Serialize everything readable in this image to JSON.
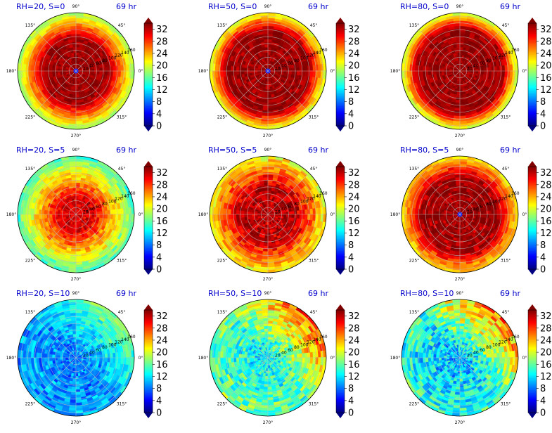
{
  "figure": {
    "colorbar": {
      "ticks": [
        "0",
        "4",
        "8",
        "12",
        "16",
        "20",
        "24",
        "28",
        "32"
      ],
      "vmin": 0,
      "vmax": 34,
      "colormap": "jet",
      "extend": "both"
    },
    "angle_labels": [
      "90°",
      "45°",
      "0°",
      "315°",
      "270°",
      "225°",
      "180°",
      "135°"
    ],
    "radial_labels": [
      "20",
      "40",
      "60",
      "80",
      "100",
      "120",
      "140",
      "160"
    ],
    "radial_max": 170,
    "radial_label_angle_deg": 22.5
  },
  "chart_data": [
    {
      "type": "heatmap",
      "projection": "polar",
      "title_left": "RH=20, S=0",
      "title_right": "69 hr",
      "field": {
        "eye_radius": 6,
        "peak_value": 33,
        "inner_ring_radius": 95,
        "outer_ring_radius": 170,
        "outer_value": 18,
        "asym_amp": 0.04
      }
    },
    {
      "type": "heatmap",
      "projection": "polar",
      "title_left": "RH=50, S=0",
      "title_right": "69 hr",
      "field": {
        "eye_radius": 4,
        "peak_value": 33,
        "inner_ring_radius": 120,
        "outer_ring_radius": 170,
        "outer_value": 20,
        "asym_amp": 0.08
      }
    },
    {
      "type": "heatmap",
      "projection": "polar",
      "title_left": "RH=80, S=0",
      "title_right": "69 hr",
      "field": {
        "eye_radius": 3,
        "peak_value": 33,
        "inner_ring_radius": 125,
        "outer_ring_radius": 170,
        "outer_value": 19,
        "asym_amp": 0.03
      }
    },
    {
      "type": "heatmap",
      "projection": "polar",
      "title_left": "RH=20, S=5",
      "title_right": "69 hr",
      "field": {
        "eye_radius": 3,
        "peak_value": 31,
        "inner_ring_radius": 50,
        "outer_ring_radius": 170,
        "outer_value": 15,
        "asym_amp": 0.25
      }
    },
    {
      "type": "heatmap",
      "projection": "polar",
      "title_left": "RH=50, S=5",
      "title_right": "69 hr",
      "field": {
        "eye_radius": 3,
        "peak_value": 32,
        "inner_ring_radius": 80,
        "outer_ring_radius": 170,
        "outer_value": 21,
        "asym_amp": 0.3
      }
    },
    {
      "type": "heatmap",
      "projection": "polar",
      "title_left": "RH=80, S=5",
      "title_right": "69 hr",
      "field": {
        "eye_radius": 4,
        "peak_value": 33,
        "inner_ring_radius": 110,
        "outer_ring_radius": 170,
        "outer_value": 22,
        "asym_amp": 0.2
      }
    },
    {
      "type": "heatmap",
      "projection": "polar",
      "title_left": "RH=20, S=10",
      "title_right": "69 hr",
      "field": {
        "eye_radius": 0,
        "peak_value": 8,
        "inner_ring_radius": 0,
        "outer_ring_radius": 170,
        "outer_value": 10,
        "asym_amp": 0.35
      }
    },
    {
      "type": "heatmap",
      "projection": "polar",
      "title_left": "RH=50, S=10",
      "title_right": "69 hr",
      "field": {
        "eye_radius": 0,
        "peak_value": 12,
        "inner_ring_radius": 0,
        "outer_ring_radius": 170,
        "outer_value": 16,
        "asym_amp": 0.55
      }
    },
    {
      "type": "heatmap",
      "projection": "polar",
      "title_left": "RH=80, S=10",
      "title_right": "69 hr",
      "field": {
        "eye_radius": 0,
        "peak_value": 10,
        "inner_ring_radius": 0,
        "outer_ring_radius": 170,
        "outer_value": 14,
        "asym_amp": 0.6
      }
    }
  ]
}
